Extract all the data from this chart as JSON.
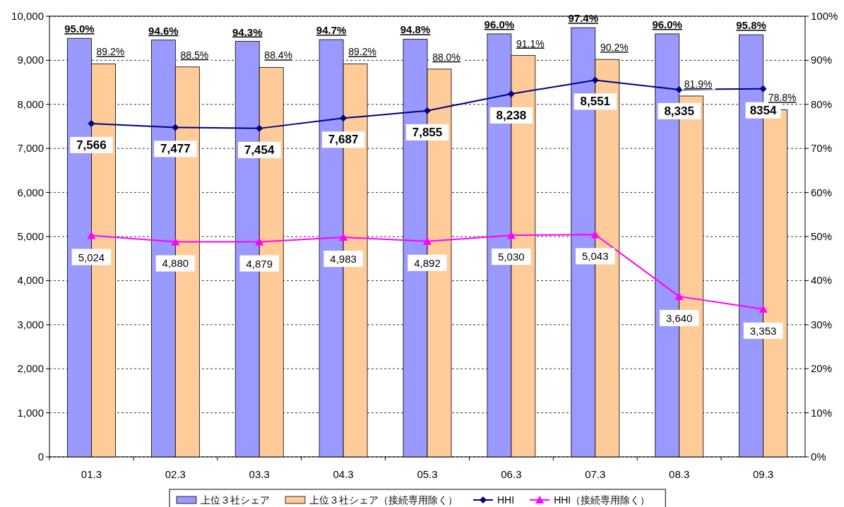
{
  "chart_data": {
    "type": "bar",
    "categories": [
      "01.3",
      "02.3",
      "03.3",
      "04.3",
      "05.3",
      "06.3",
      "07.3",
      "08.3",
      "09.3"
    ],
    "series": [
      {
        "name": "上位３社シェア",
        "type": "bar",
        "axis": "y2",
        "color": "#9999ff",
        "values": [
          95.0,
          94.6,
          94.3,
          94.7,
          94.8,
          96.0,
          97.4,
          96.0,
          95.8
        ],
        "value_labels": [
          "95.0%",
          "94.6%",
          "94.3%",
          "94.7%",
          "94.8%",
          "96.0%",
          "97.4%",
          "96.0%",
          "95.8%"
        ]
      },
      {
        "name": "上位３社シェア（接続専用除く）",
        "type": "bar",
        "axis": "y2",
        "color": "#ffcc99",
        "values": [
          89.2,
          88.5,
          88.4,
          89.2,
          88.0,
          91.1,
          90.2,
          81.9,
          78.8
        ],
        "value_labels": [
          "89.2%",
          "88.5%",
          "88.4%",
          "89.2%",
          "88.0%",
          "91.1%",
          "90.2%",
          "81.9%",
          "78.8%"
        ]
      },
      {
        "name": "HHI",
        "type": "line",
        "color": "#000080",
        "marker": "diamond",
        "values": [
          7566,
          7477,
          7454,
          7687,
          7855,
          8238,
          8551,
          8335,
          8354
        ],
        "value_labels": [
          "7,566",
          "7,477",
          "7,454",
          "7,687",
          "7,855",
          "8,238",
          "8,551",
          "8,335",
          "8354"
        ]
      },
      {
        "name": "HHI（接続専用除く）",
        "type": "line",
        "color": "#ff00ff",
        "marker": "triangle",
        "values": [
          5024,
          4880,
          4879,
          4983,
          4892,
          5030,
          5043,
          3640,
          3353
        ],
        "value_labels": [
          "5,024",
          "4,880",
          "4,879",
          "4,983",
          "4,892",
          "5,030",
          "5,043",
          "3,640",
          "3,353"
        ]
      }
    ],
    "ylim": [
      0,
      10000
    ],
    "yticks": [
      0,
      {
        "value": 1000,
        "label": "1,000"
      },
      {
        "value": 2000,
        "label": "2,000"
      },
      {
        "value": 3000,
        "label": "3,000"
      },
      {
        "value": 4000,
        "label": "4,000"
      },
      {
        "value": 5000,
        "label": "5,000"
      },
      {
        "value": 6000,
        "label": "6,000"
      },
      {
        "value": 7000,
        "label": "7,000"
      },
      {
        "value": 8000,
        "label": "8,000"
      },
      {
        "value": 9000,
        "label": "9,000"
      },
      {
        "value": 10000,
        "label": "10,000"
      }
    ],
    "y2lim": [
      0,
      100
    ],
    "y2ticks": [
      {
        "value": 0,
        "label": "0%"
      },
      {
        "value": 10,
        "label": "10%"
      },
      {
        "value": 20,
        "label": "20%"
      },
      {
        "value": 30,
        "label": "30%"
      },
      {
        "value": 40,
        "label": "40%"
      },
      {
        "value": 50,
        "label": "50%"
      },
      {
        "value": 60,
        "label": "60%"
      },
      {
        "value": 70,
        "label": "70%"
      },
      {
        "value": 80,
        "label": "80%"
      },
      {
        "value": 90,
        "label": "90%"
      },
      {
        "value": 100,
        "label": "100%"
      }
    ],
    "grid": "y",
    "legend": "bottom"
  }
}
